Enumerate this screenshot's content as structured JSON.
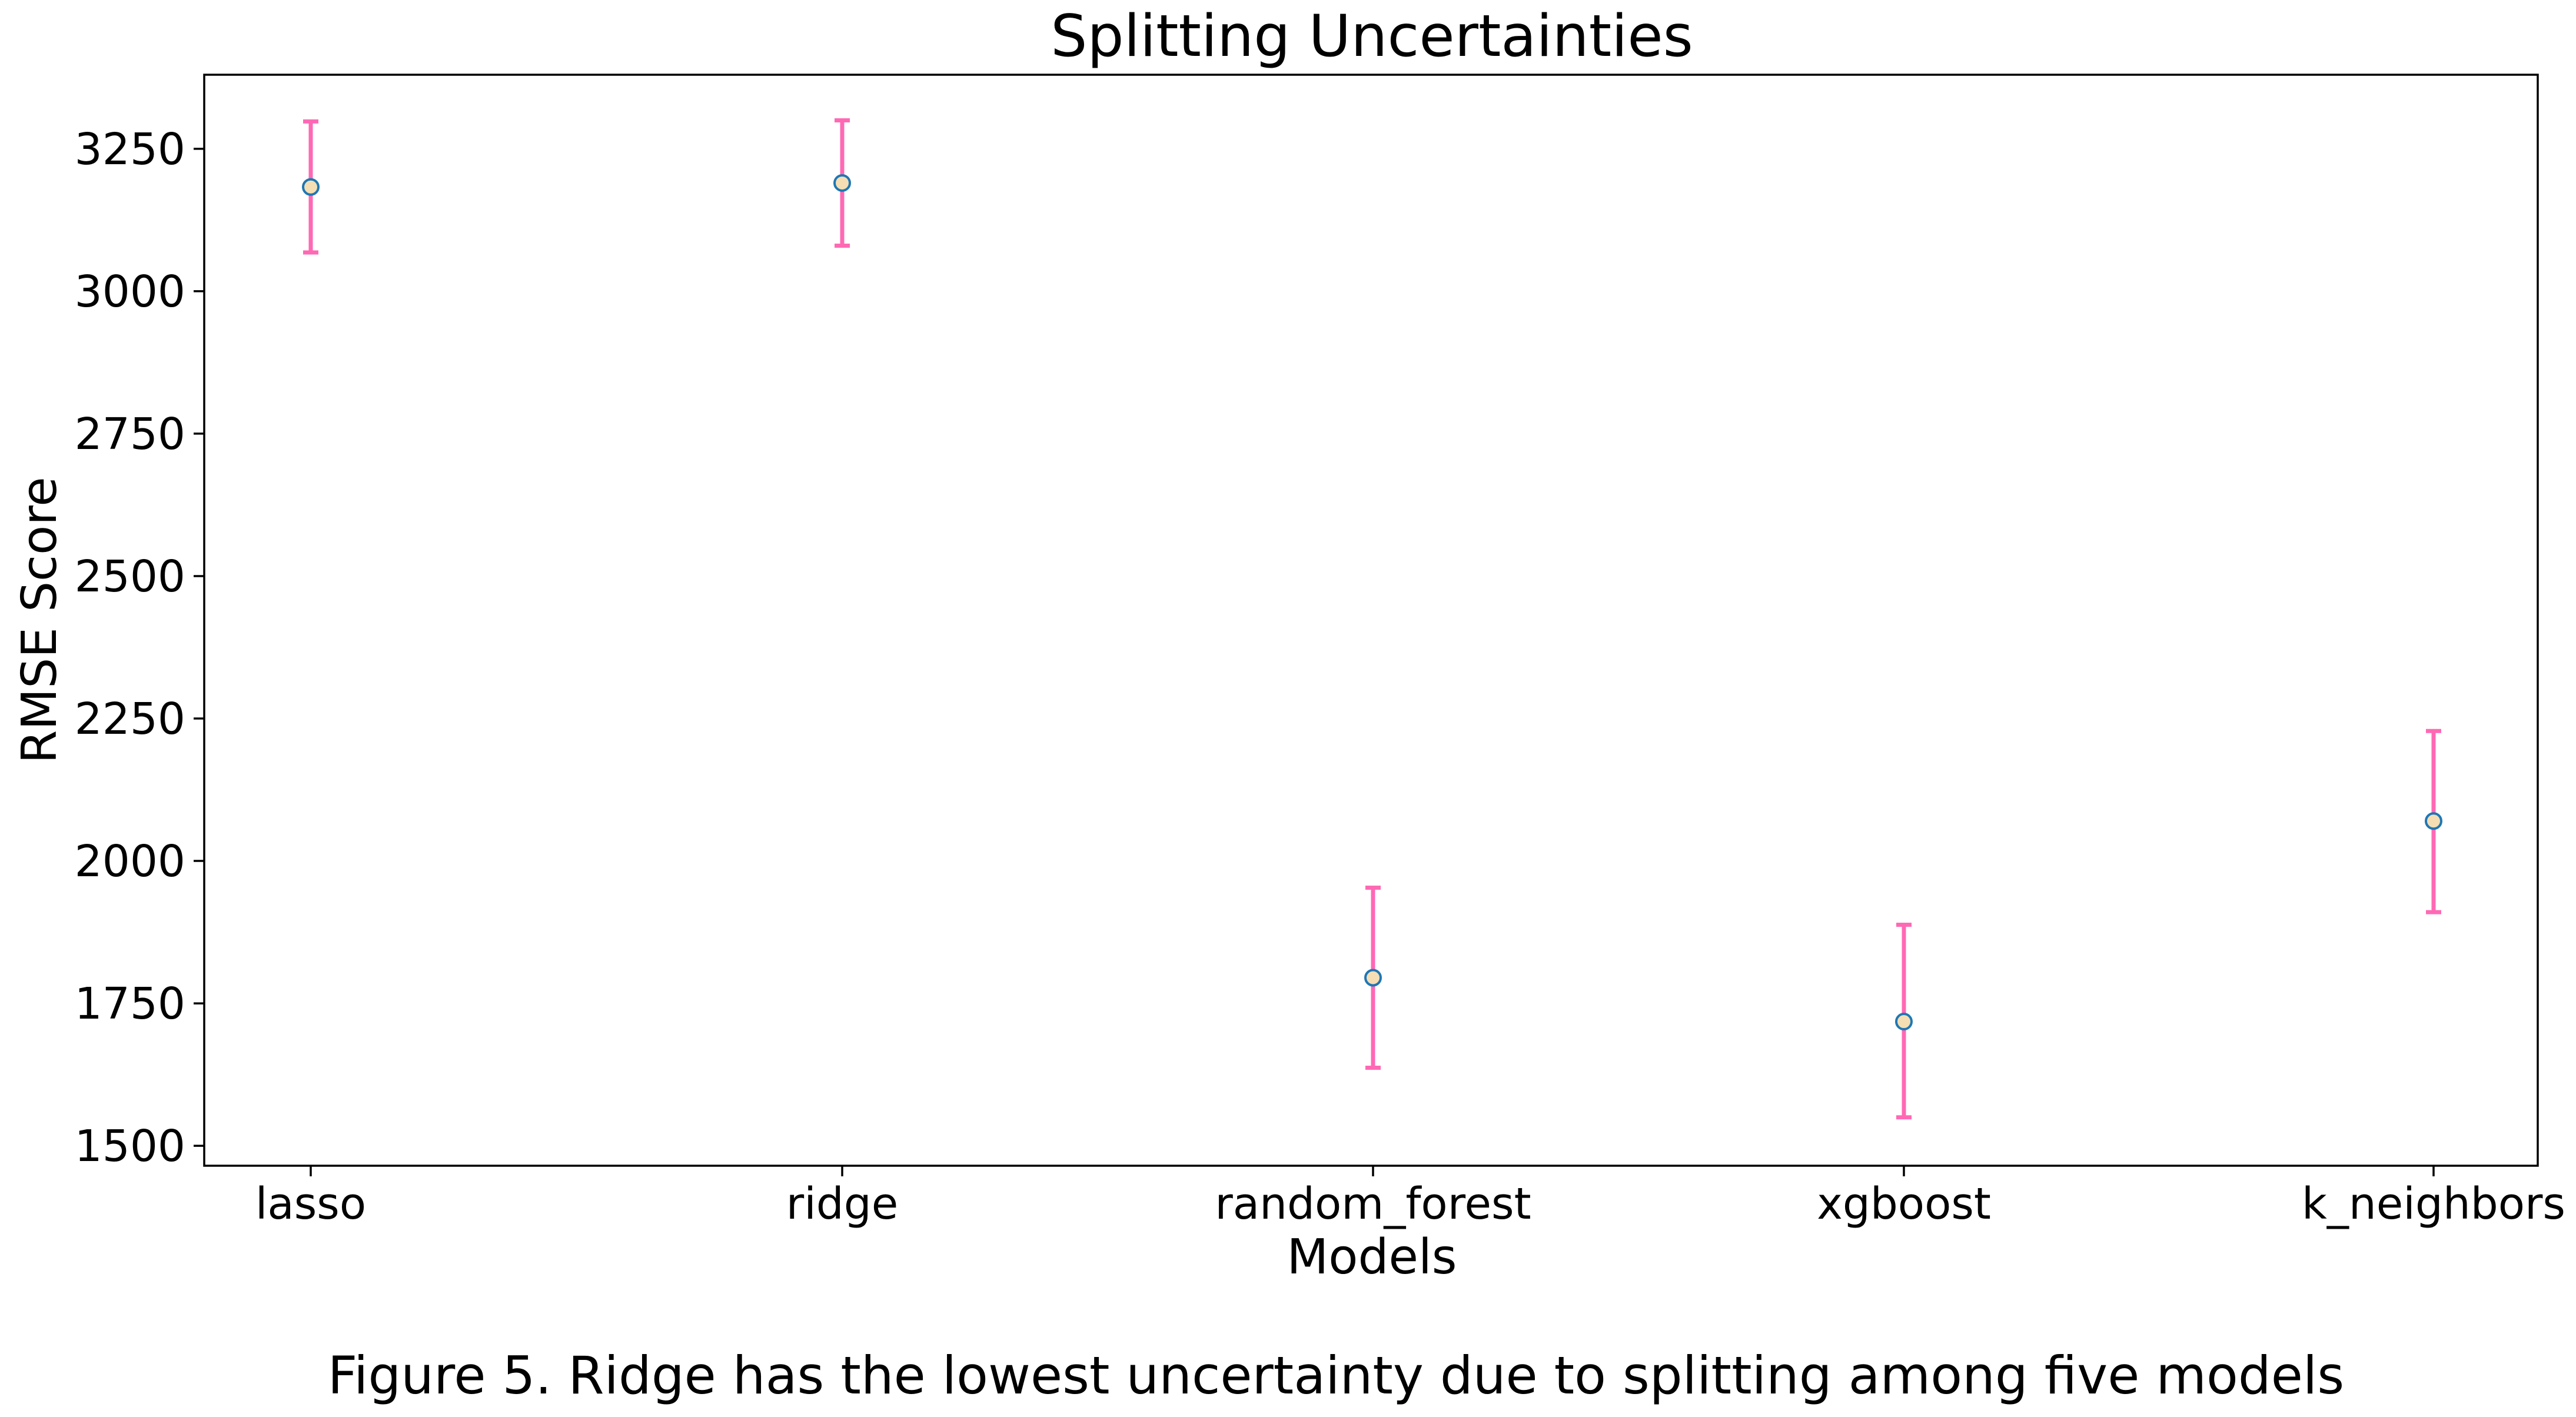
{
  "chart_data": {
    "type": "scatter",
    "title": "Splitting Uncertainties",
    "xlabel": "Models",
    "ylabel": "RMSE Score",
    "categories": [
      "lasso",
      "ridge",
      "random_forest",
      "xgboost",
      "k_neighbors"
    ],
    "values": [
      3183,
      3190,
      1795,
      1718,
      2070
    ],
    "error_low": [
      3068,
      3080,
      1637,
      1550,
      1910
    ],
    "error_high": [
      3298,
      3300,
      1953,
      1888,
      2228
    ],
    "yticks": [
      1500,
      1750,
      2000,
      2250,
      2500,
      2750,
      3000,
      3250
    ],
    "ylim": [
      1465,
      3380
    ],
    "grid": false,
    "legend": "none",
    "colors": {
      "errorbar": "#ff69b4",
      "marker_face": "#f5deb3",
      "marker_edge": "#1f77b4"
    }
  },
  "caption": "Figure 5. Ridge has the lowest uncertainty due to splitting among five models"
}
